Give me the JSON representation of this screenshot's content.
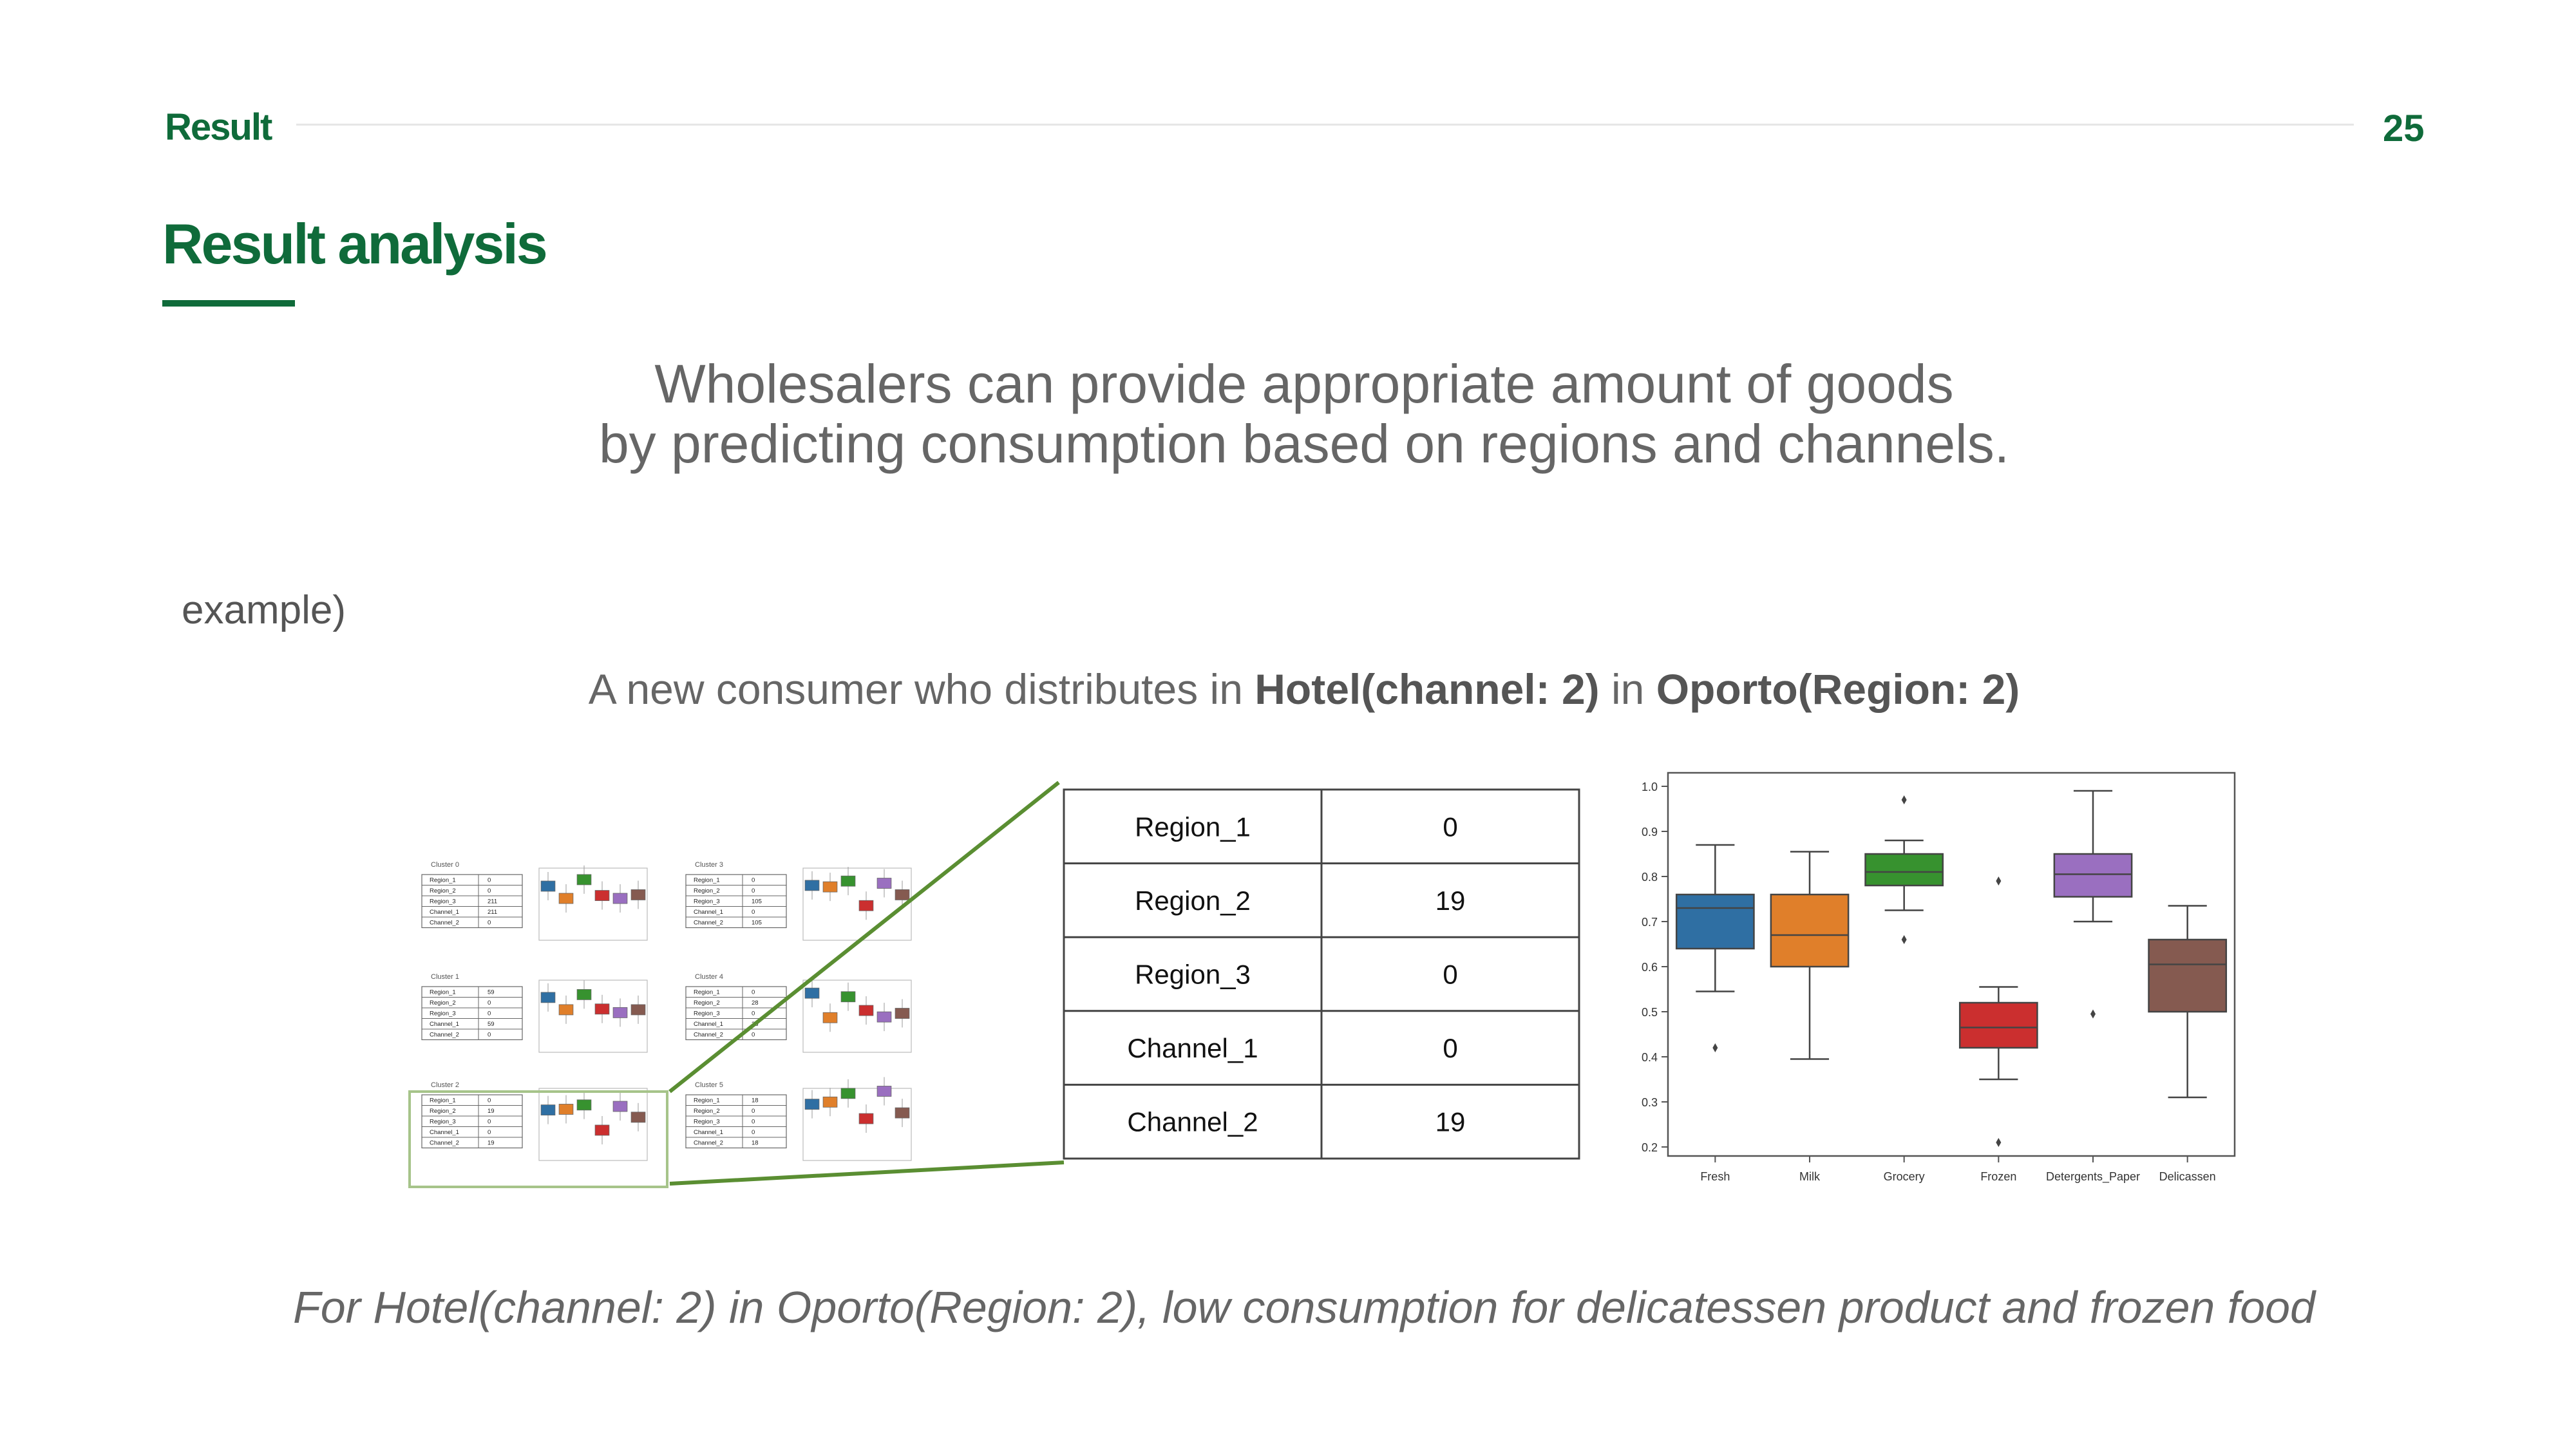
{
  "header": {
    "section": "Result",
    "page_number": "25"
  },
  "title": "Result analysis",
  "message": {
    "line1": "Wholesalers can provide appropriate amount of goods",
    "line2": "by predicting consumption based on regions and channels."
  },
  "example_label": "example)",
  "consumer": {
    "prefix": "A new consumer who distributes in ",
    "channel": "Hotel(channel: 2)",
    "middle": " in ",
    "region": "Oporto(Region: 2)"
  },
  "thumbnails": [
    {
      "cluster": "Cluster 0",
      "rows": [
        [
          "Region_1",
          "0"
        ],
        [
          "Region_2",
          "0"
        ],
        [
          "Region_3",
          "211"
        ],
        [
          "Channel_1",
          "211"
        ],
        [
          "Channel_2",
          "0"
        ]
      ]
    },
    {
      "cluster": "Cluster 3",
      "rows": [
        [
          "Region_1",
          "0"
        ],
        [
          "Region_2",
          "0"
        ],
        [
          "Region_3",
          "105"
        ],
        [
          "Channel_1",
          "0"
        ],
        [
          "Channel_2",
          "105"
        ]
      ]
    },
    {
      "cluster": "Cluster 1",
      "rows": [
        [
          "Region_1",
          "59"
        ],
        [
          "Region_2",
          "0"
        ],
        [
          "Region_3",
          "0"
        ],
        [
          "Channel_1",
          "59"
        ],
        [
          "Channel_2",
          "0"
        ]
      ]
    },
    {
      "cluster": "Cluster 4",
      "rows": [
        [
          "Region_1",
          "0"
        ],
        [
          "Region_2",
          "28"
        ],
        [
          "Region_3",
          "0"
        ],
        [
          "Channel_1",
          "28"
        ],
        [
          "Channel_2",
          "0"
        ]
      ]
    },
    {
      "cluster": "Cluster 2",
      "rows": [
        [
          "Region_1",
          "0"
        ],
        [
          "Region_2",
          "19"
        ],
        [
          "Region_3",
          "0"
        ],
        [
          "Channel_1",
          "0"
        ],
        [
          "Channel_2",
          "19"
        ]
      ]
    },
    {
      "cluster": "Cluster 5",
      "rows": [
        [
          "Region_1",
          "18"
        ],
        [
          "Region_2",
          "0"
        ],
        [
          "Region_3",
          "0"
        ],
        [
          "Channel_1",
          "0"
        ],
        [
          "Channel_2",
          "18"
        ]
      ]
    }
  ],
  "zoom_table": {
    "rows": [
      {
        "label": "Region_1",
        "value": "0"
      },
      {
        "label": "Region_2",
        "value": "19"
      },
      {
        "label": "Region_3",
        "value": "0"
      },
      {
        "label": "Channel_1",
        "value": "0"
      },
      {
        "label": "Channel_2",
        "value": "19"
      }
    ]
  },
  "chart_data": {
    "type": "box",
    "categories": [
      "Fresh",
      "Milk",
      "Grocery",
      "Frozen",
      "Detergents_Paper",
      "Delicassen"
    ],
    "colors": [
      "#2f6fa3",
      "#e07f2a",
      "#37922f",
      "#cb2f2f",
      "#9a6fc0",
      "#855a50"
    ],
    "y_ticks": [
      "0.2",
      "0.3",
      "0.4",
      "0.5",
      "0.6",
      "0.7",
      "0.8",
      "0.9",
      "1.0"
    ],
    "ylim": [
      0.18,
      1.03
    ],
    "boxes": [
      {
        "min": 0.545,
        "q1": 0.64,
        "median": 0.73,
        "q3": 0.76,
        "max": 0.87,
        "outliers": [
          0.42
        ]
      },
      {
        "min": 0.395,
        "q1": 0.6,
        "median": 0.67,
        "q3": 0.76,
        "max": 0.855,
        "outliers": []
      },
      {
        "min": 0.725,
        "q1": 0.78,
        "median": 0.81,
        "q3": 0.85,
        "max": 0.88,
        "outliers": [
          0.97,
          0.66
        ]
      },
      {
        "min": 0.35,
        "q1": 0.42,
        "median": 0.465,
        "q3": 0.52,
        "max": 0.555,
        "outliers": [
          0.79,
          0.21
        ]
      },
      {
        "min": 0.7,
        "q1": 0.755,
        "median": 0.805,
        "q3": 0.85,
        "max": 0.99,
        "outliers": [
          0.495
        ]
      },
      {
        "min": 0.31,
        "q1": 0.5,
        "median": 0.605,
        "q3": 0.66,
        "max": 0.735,
        "outliers": []
      }
    ]
  },
  "conclusion": "For Hotel(channel: 2) in Oporto(Region: 2), low consumption for delicatessen product and frozen food",
  "colors": {
    "brand_green": "#0f6b3a",
    "callout_green": "#5a8e32",
    "highlight_green": "#a6c48a"
  }
}
